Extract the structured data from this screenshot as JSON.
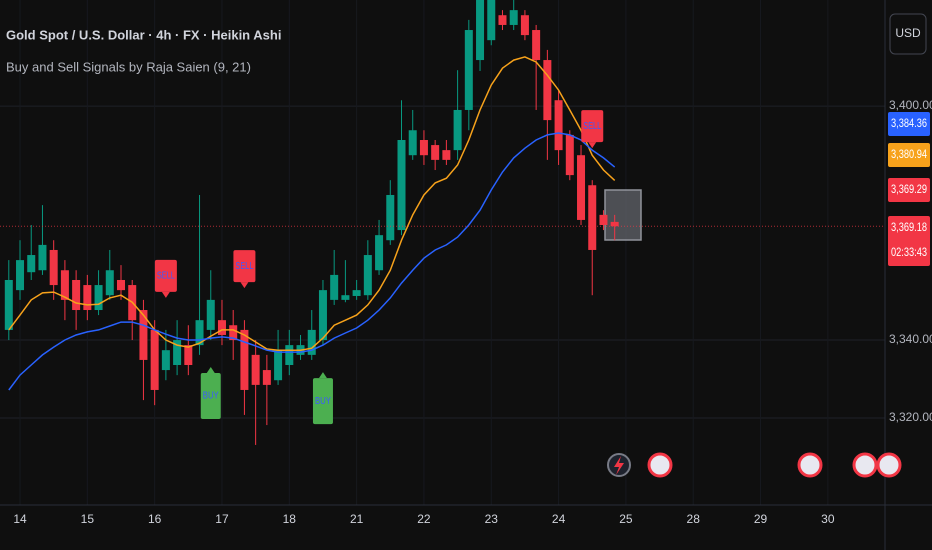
{
  "chart_data": {
    "type": "candlestick",
    "title": "Gold Spot / U.S. Dollar · 4h · FX · Heikin Ashi",
    "subtitle": "Buy and Sell Signals by Raja Saien (9, 21)",
    "currency": "USD",
    "up_color": "#089981",
    "down_color": "#f23645",
    "categories": [
      null,
      "14",
      null,
      null,
      null,
      null,
      null,
      "15",
      null,
      null,
      null,
      null,
      null,
      "16",
      null,
      null,
      null,
      null,
      null,
      "17",
      null,
      null,
      null,
      null,
      null,
      "18",
      null,
      null,
      null,
      null,
      null,
      "21",
      null,
      null,
      null,
      null,
      null,
      "22",
      null,
      null,
      null,
      null,
      null,
      "23",
      null,
      null,
      null,
      null,
      null,
      "24",
      null,
      null,
      null,
      null,
      null,
      "25",
      null,
      null,
      null,
      null,
      null,
      "28",
      null,
      null,
      null,
      null,
      null,
      "29",
      null,
      null,
      null,
      null,
      null,
      "30",
      null,
      null,
      null,
      null,
      null
    ],
    "open": [
      3342.6,
      3352.8,
      3357.4,
      3357.9,
      3363.1,
      3357.9,
      3355.4,
      3354.1,
      3347.7,
      3351.5,
      3355.4,
      3354.1,
      3347.7,
      3342.6,
      3332.3,
      3333.6,
      3338.7,
      3338.7,
      3342.6,
      3345.1,
      3343.8,
      3342.6,
      3336.2,
      3332.3,
      3329.7,
      3333.6,
      3336.2,
      3336.2,
      3340.0,
      3350.3,
      3350.3,
      3351.3,
      3351.5,
      3357.9,
      3365.6,
      3368.2,
      3387.4,
      3391.3,
      3390.0,
      3388.7,
      3388.7,
      3399.0,
      3411.8,
      3416.9,
      3423.3,
      3420.8,
      3423.3,
      3419.5,
      3411.8,
      3401.5,
      3392.6,
      3387.4,
      3379.7,
      3372.1,
      3370.3,
      null,
      null,
      null,
      null,
      null,
      null,
      null,
      null,
      null,
      null,
      null,
      null,
      null,
      null,
      null,
      null,
      null,
      null,
      null,
      null,
      null,
      null,
      null,
      null
    ],
    "high": [
      3360.5,
      3365.6,
      3369.5,
      3374.6,
      3365.6,
      3360.5,
      3357.9,
      3356.7,
      3357.9,
      3363.1,
      3359.2,
      3355.4,
      3350.3,
      3345.1,
      3342.6,
      3345.1,
      3343.8,
      3377.2,
      3357.9,
      3350.3,
      3347.7,
      3345.1,
      3340.0,
      3336.2,
      3342.6,
      3342.6,
      3341.3,
      3347.7,
      3355.4,
      3363.1,
      3360.5,
      3355.4,
      3365.6,
      3370.8,
      3381.0,
      3401.5,
      3399.0,
      3393.8,
      3391.3,
      3391.3,
      3409.2,
      3422.1,
      3432.0,
      3433.0,
      3424.6,
      3428.0,
      3424.6,
      3420.8,
      3414.4,
      3404.1,
      3393.8,
      3390.0,
      3381.0,
      3373.3,
      3372.1,
      null,
      null,
      null,
      null,
      null,
      null,
      null,
      null,
      null,
      null,
      null,
      null,
      null,
      null,
      null,
      null,
      null,
      null,
      null,
      null,
      null,
      null,
      null,
      null
    ],
    "low": [
      3340.0,
      3350.3,
      3355.4,
      3356.7,
      3350.3,
      3345.1,
      3342.6,
      3345.1,
      3346.4,
      3350.3,
      3350.3,
      3340.0,
      3324.6,
      3323.3,
      3329.7,
      3331.0,
      3331.0,
      3336.2,
      3340.0,
      3338.7,
      3334.9,
      3320.8,
      3313.1,
      3318.2,
      3328.5,
      3331.0,
      3334.9,
      3334.9,
      3338.7,
      3349.0,
      3349.7,
      3350.3,
      3350.3,
      3356.7,
      3364.4,
      3366.9,
      3386.2,
      3384.9,
      3383.6,
      3384.9,
      3386.2,
      3393.8,
      3409.0,
      3415.6,
      3419.5,
      3419.5,
      3416.9,
      3399.0,
      3386.2,
      3384.9,
      3381.0,
      3369.5,
      3351.5,
      3368.2,
      3365.6,
      null,
      null,
      null,
      null,
      null,
      null,
      null,
      null,
      null,
      null,
      null,
      null,
      null,
      null,
      null,
      null,
      null,
      null,
      null,
      null,
      null,
      null,
      null,
      null
    ],
    "close": [
      3355.4,
      3360.5,
      3361.8,
      3364.4,
      3354.1,
      3350.3,
      3347.7,
      3347.7,
      3354.1,
      3357.9,
      3352.8,
      3345.1,
      3334.9,
      3327.2,
      3337.4,
      3340.0,
      3333.6,
      3345.1,
      3350.3,
      3341.3,
      3340.0,
      3327.2,
      3328.5,
      3328.5,
      3337.4,
      3338.7,
      3338.7,
      3342.6,
      3352.8,
      3356.7,
      3351.5,
      3352.8,
      3361.8,
      3366.9,
      3377.2,
      3391.3,
      3393.8,
      3387.4,
      3386.2,
      3386.2,
      3399.0,
      3419.5,
      3428.5,
      3430.0,
      3420.8,
      3424.6,
      3418.2,
      3411.8,
      3396.4,
      3388.7,
      3382.3,
      3370.8,
      3363.1,
      3369.5,
      3369.18,
      null,
      null,
      null,
      null,
      null,
      null,
      null,
      null,
      null,
      null,
      null,
      null,
      null,
      null,
      null,
      null,
      null,
      null,
      null,
      null,
      null,
      null,
      null,
      null
    ],
    "lines": [
      {
        "color": "#f7a21b",
        "values": [
          3342.6,
          3346.4,
          3350.3,
          3352.1,
          3352.3,
          3351.0,
          3349.5,
          3349.0,
          3349.2,
          3350.8,
          3351.5,
          3349.7,
          3346.4,
          3342.6,
          3340.0,
          3338.7,
          3338.2,
          3339.2,
          3341.0,
          3342.6,
          3342.6,
          3341.3,
          3339.5,
          3337.7,
          3337.4,
          3337.4,
          3337.4,
          3337.9,
          3340.5,
          3343.8,
          3345.1,
          3346.4,
          3349.0,
          3352.8,
          3357.9,
          3365.6,
          3372.1,
          3377.2,
          3380.3,
          3381.5,
          3384.9,
          3391.3,
          3399.0,
          3405.4,
          3409.7,
          3411.8,
          3412.6,
          3411.3,
          3407.9,
          3404.1,
          3399.0,
          3393.8,
          3387.4,
          3383.6,
          3380.94,
          null,
          null,
          null,
          null,
          null,
          null,
          null,
          null,
          null,
          null,
          null,
          null,
          null,
          null,
          null,
          null,
          null,
          null,
          null,
          null,
          null,
          null,
          null,
          null
        ]
      },
      {
        "color": "#2962ff",
        "values": [
          3327.2,
          3331.0,
          3333.6,
          3336.2,
          3338.2,
          3340.0,
          3341.3,
          3342.1,
          3342.6,
          3343.6,
          3344.6,
          3344.6,
          3343.8,
          3342.6,
          3341.5,
          3340.5,
          3340.0,
          3340.0,
          3340.5,
          3340.8,
          3340.5,
          3339.5,
          3338.5,
          3337.4,
          3336.9,
          3336.9,
          3336.9,
          3337.4,
          3338.7,
          3340.5,
          3341.8,
          3343.1,
          3345.1,
          3347.7,
          3350.8,
          3354.6,
          3357.9,
          3361.0,
          3363.1,
          3364.4,
          3366.4,
          3369.5,
          3373.3,
          3378.5,
          3383.1,
          3386.7,
          3389.2,
          3391.3,
          3392.6,
          3393.1,
          3392.6,
          3391.3,
          3388.7,
          3386.7,
          3384.36,
          null,
          null,
          null,
          null,
          null,
          null,
          null,
          null,
          null,
          null,
          null,
          null,
          null,
          null,
          null,
          null,
          null,
          null,
          null,
          null,
          null,
          null,
          null,
          null
        ]
      }
    ],
    "signals": [
      {
        "index": 14,
        "label": "SELL"
      },
      {
        "index": 21,
        "label": "SELL"
      },
      {
        "index": 52,
        "label": "SELL"
      },
      {
        "index": 18,
        "label": "BUY"
      },
      {
        "index": 28,
        "label": "BUY"
      }
    ],
    "ylim": [
      3297.7,
      3427.2
    ],
    "yticks": [
      {
        "value": 3320,
        "label": "3,320.00"
      },
      {
        "value": 3340,
        "label": "3,340.00"
      },
      {
        "value": 3400,
        "label": "3,400.00"
      }
    ],
    "grid": true,
    "price_tags": [
      {
        "value": 3384.36,
        "label": "3,384.36",
        "color": "#2962ff"
      },
      {
        "value": 3380.94,
        "label": "3,380.94",
        "color": "#f7a21b"
      },
      {
        "value": 3369.29,
        "label": "3,369.29",
        "color": "#f23645"
      },
      {
        "value": 3369.18,
        "label": "3,369.18",
        "color": "#f23645",
        "countdown": "02:33:43"
      }
    ]
  }
}
